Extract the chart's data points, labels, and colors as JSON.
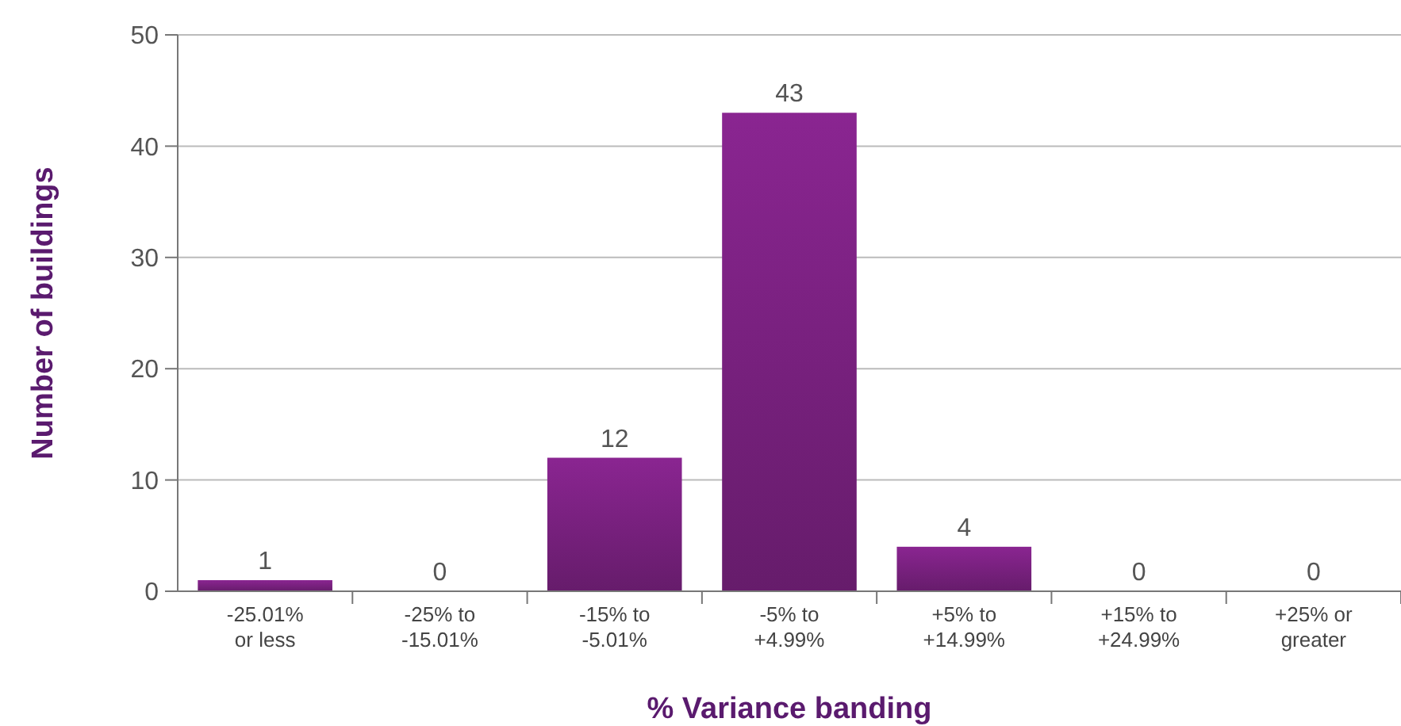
{
  "chart_data": {
    "type": "bar",
    "xlabel": "% Variance banding",
    "ylabel": "Number of buildings",
    "categories": [
      "-25.01%\nor less",
      "-25% to\n-15.01%",
      "-15% to\n-5.01%",
      "-5% to\n+4.99%",
      "+5% to\n+14.99%",
      "+15% to\n+24.99%",
      "+25% or\ngreater"
    ],
    "values": [
      1,
      0,
      12,
      43,
      4,
      0,
      0
    ],
    "color": "#7a2180",
    "ylim": [
      0,
      50
    ],
    "yticks": [
      0,
      10,
      20,
      30,
      40,
      50
    ],
    "grid": "y",
    "data_labels": true
  }
}
